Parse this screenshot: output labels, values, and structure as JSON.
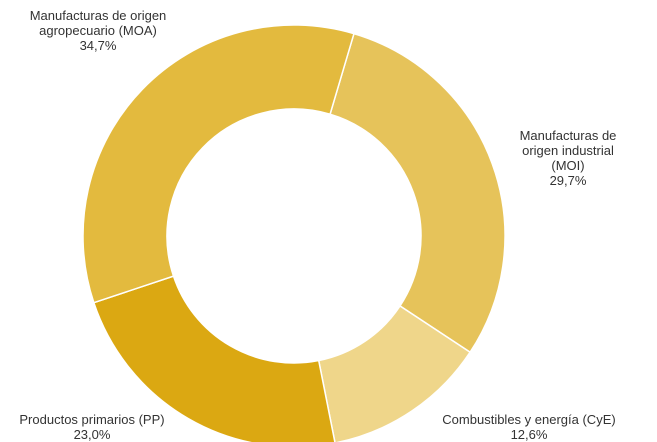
{
  "chart_data": {
    "type": "donut",
    "categories": [
      "Manufacturas de origen industrial (MOI)",
      "Combustibles y energía (CyE)",
      "Productos primarios (PP)",
      "Manufacturas de origen agropecuario (MOA)"
    ],
    "values": [
      29.7,
      12.6,
      23.0,
      34.7
    ],
    "value_labels": [
      "29,7%",
      "12,6%",
      "23,0%",
      "34,7%"
    ],
    "colors": [
      "#e6c35a",
      "#efd68a",
      "#dba812",
      "#e3ba3e"
    ]
  }
}
